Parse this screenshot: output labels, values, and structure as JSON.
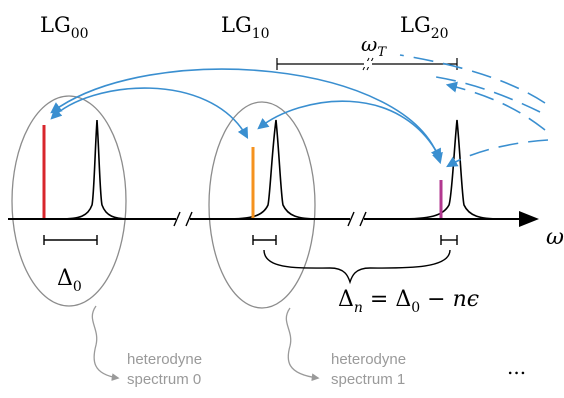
{
  "modes": [
    {
      "base": "LG",
      "sub": "00"
    },
    {
      "base": "LG",
      "sub": "10"
    },
    {
      "base": "LG",
      "sub": "20"
    }
  ],
  "omega_T": {
    "symbol": "ω",
    "sub": "T"
  },
  "axis_label": "ω",
  "delta0": {
    "symbol": "Δ",
    "sub": "0"
  },
  "delta_n": {
    "symbol": "Δ",
    "sub": "n",
    "rhs": " = Δ",
    "rhs_sub": "0",
    "tail": " − nϵ"
  },
  "captions": [
    {
      "line1": "heterodyne",
      "line2": "spectrum 0"
    },
    {
      "line1": "heterodyne",
      "line2": "spectrum 1"
    }
  ],
  "ellipsis": "...",
  "colors": {
    "lo_line_0": "#d8262c",
    "lo_line_1": "#f5921e",
    "lo_line_2": "#b2378f",
    "arrows": "#3a8fd0",
    "ellipses": "#8c8c8c",
    "captions": "#9a9a9a"
  }
}
